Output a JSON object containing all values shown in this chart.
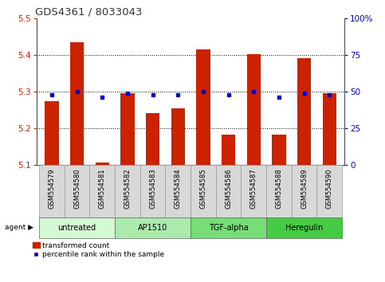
{
  "title": "GDS4361 / 8033043",
  "samples": [
    "GSM554579",
    "GSM554580",
    "GSM554581",
    "GSM554582",
    "GSM554583",
    "GSM554584",
    "GSM554585",
    "GSM554586",
    "GSM554587",
    "GSM554588",
    "GSM554589",
    "GSM554590"
  ],
  "red_values": [
    5.275,
    5.435,
    5.107,
    5.295,
    5.242,
    5.255,
    5.415,
    5.182,
    5.402,
    5.182,
    5.392,
    5.295
  ],
  "blue_pct": [
    48,
    50,
    46,
    49,
    48,
    48,
    50,
    48,
    50,
    46,
    49,
    48
  ],
  "ylim_left": [
    5.1,
    5.5
  ],
  "ylim_right": [
    0,
    100
  ],
  "yticks_left": [
    5.1,
    5.2,
    5.3,
    5.4,
    5.5
  ],
  "yticks_right": [
    0,
    25,
    50,
    75,
    100
  ],
  "grid_lines": [
    5.2,
    5.3,
    5.4
  ],
  "groups": [
    {
      "label": "untreated",
      "start": 0,
      "end": 3,
      "color": "#d4f7d4"
    },
    {
      "label": "AP1510",
      "start": 3,
      "end": 6,
      "color": "#aaeaaa"
    },
    {
      "label": "TGF-alpha",
      "start": 6,
      "end": 9,
      "color": "#77dd77"
    },
    {
      "label": "Heregulin",
      "start": 9,
      "end": 12,
      "color": "#44cc44"
    }
  ],
  "bar_color": "#cc2200",
  "dot_color": "#0000cc",
  "bar_width": 0.55,
  "baseline": 5.1,
  "legend_red": "transformed count",
  "legend_blue": "percentile rank within the sample",
  "ylabel_left_color": "#cc2200",
  "ylabel_right_color": "#0000cc",
  "xtick_bg": "#d8d8d8",
  "xtick_border": "#999999"
}
